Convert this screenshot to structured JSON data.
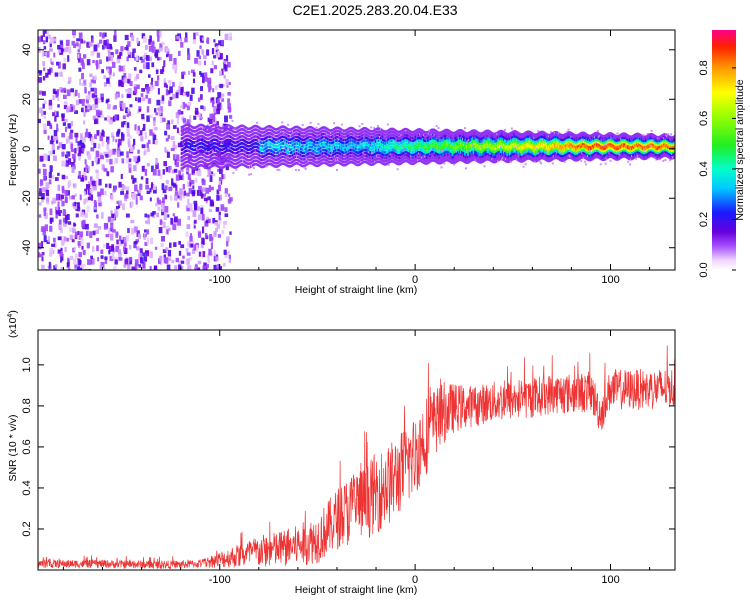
{
  "title": "C2E1.2025.283.20.04.E33",
  "colors": {
    "snr_line": "#ee3333",
    "axis": "#000000"
  },
  "chart_data": [
    {
      "type": "heatmap",
      "title": "C2E1.2025.283.20.04.E33",
      "xlabel": "Height of straight line (km)",
      "ylabel": "Frequency (Hz)",
      "xlim": [
        -193,
        133
      ],
      "ylim": [
        -49,
        48
      ],
      "xticks": [
        -100,
        0,
        100
      ],
      "yticks": [
        -40,
        -20,
        0,
        20,
        40
      ],
      "xtick_labels": [
        "-100",
        "0",
        "100"
      ],
      "ytick_labels": [
        "-40",
        "-20",
        "0",
        "20",
        "40"
      ],
      "colorbar": {
        "label": "Normalized spectral amplitude",
        "range": [
          0.0,
          0.95
        ],
        "ticks": [
          0.0,
          0.2,
          0.4,
          0.6,
          0.8
        ],
        "tick_labels": [
          "0.0",
          "0.2",
          "0.4",
          "0.6",
          "0.8"
        ],
        "colormap": "rainbow"
      },
      "regions": [
        {
          "name": "broadband noise",
          "x_range": [
            -193,
            -105
          ],
          "freq_range": [
            -49,
            48
          ],
          "amplitude": 0.1
        },
        {
          "name": "signal band",
          "x_range": [
            -120,
            133
          ],
          "center_freq_hz": 1,
          "half_width_hz": [
            6,
            3
          ],
          "peak_amplitude": 0.95
        }
      ]
    },
    {
      "type": "line",
      "xlabel": "Height of straight line (km)",
      "ylabel": "SNR (10 * v/v)",
      "scale_label": "(x10",
      "scale_exponent": "4",
      "xlim": [
        -193,
        133
      ],
      "ylim": [
        0,
        1.17
      ],
      "xticks": [
        -100,
        0,
        100
      ],
      "yticks": [
        0.2,
        0.4,
        0.6,
        0.8,
        1.0
      ],
      "xtick_labels": [
        "-100",
        "0",
        "100"
      ],
      "ytick_labels": [
        "0.2",
        "0.4",
        "0.6",
        "0.8",
        "1.0"
      ],
      "series": [
        {
          "name": "SNR",
          "x": [
            -193,
            -160,
            -130,
            -110,
            -100,
            -90,
            -80,
            -70,
            -60,
            -50,
            -40,
            -35,
            -30,
            -25,
            -20,
            -15,
            -10,
            -5,
            0,
            5,
            10,
            15,
            20,
            30,
            40,
            50,
            60,
            70,
            80,
            90,
            95,
            100,
            110,
            120,
            133
          ],
          "values": [
            0.03,
            0.03,
            0.025,
            0.03,
            0.05,
            0.07,
            0.09,
            0.1,
            0.12,
            0.15,
            0.25,
            0.28,
            0.32,
            0.33,
            0.38,
            0.4,
            0.45,
            0.5,
            0.56,
            0.65,
            0.72,
            0.77,
            0.79,
            0.8,
            0.82,
            0.83,
            0.84,
            0.86,
            0.86,
            0.87,
            0.76,
            0.88,
            0.88,
            0.88,
            0.89
          ],
          "noise_amplitude": [
            0.02,
            0.02,
            0.02,
            0.02,
            0.04,
            0.06,
            0.08,
            0.09,
            0.1,
            0.12,
            0.15,
            0.17,
            0.18,
            0.18,
            0.2,
            0.2,
            0.2,
            0.2,
            0.2,
            0.2,
            0.17,
            0.15,
            0.12,
            0.1,
            0.1,
            0.1,
            0.1,
            0.1,
            0.1,
            0.1,
            0.1,
            0.1,
            0.1,
            0.1,
            0.1
          ]
        }
      ]
    }
  ]
}
